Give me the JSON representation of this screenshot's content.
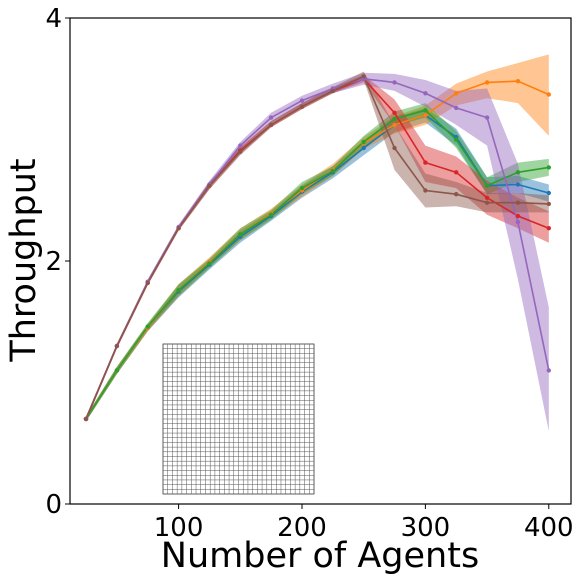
{
  "chart_data": {
    "type": "line",
    "title": "",
    "xlabel": "Number of Agents",
    "ylabel": "Throughput",
    "xlim": [
      12,
      418
    ],
    "ylim": [
      0,
      4
    ],
    "xticks": [
      100,
      200,
      300,
      400
    ],
    "yticks": [
      0,
      2,
      4
    ],
    "grid": false,
    "inset": {
      "kind": "grid-map",
      "cells_x": 32,
      "cells_y": 32
    },
    "x": [
      25,
      50,
      75,
      100,
      125,
      150,
      175,
      200,
      225,
      250,
      275,
      300,
      325,
      350,
      375,
      400
    ],
    "series": [
      {
        "color": "#1f77b4",
        "values": [
          0.7,
          1.1,
          1.45,
          1.75,
          1.97,
          2.2,
          2.37,
          2.57,
          2.73,
          2.93,
          3.12,
          3.2,
          3.02,
          2.62,
          2.63,
          2.56
        ],
        "lower": [
          0.68,
          1.07,
          1.42,
          1.7,
          1.93,
          2.15,
          2.33,
          2.52,
          2.68,
          2.87,
          3.06,
          3.14,
          2.95,
          2.55,
          2.56,
          2.49
        ],
        "upper": [
          0.72,
          1.13,
          1.48,
          1.8,
          2.01,
          2.25,
          2.41,
          2.62,
          2.78,
          2.99,
          3.18,
          3.26,
          3.09,
          2.69,
          2.7,
          2.63
        ]
      },
      {
        "color": "#ff7f0e",
        "values": [
          0.7,
          1.1,
          1.45,
          1.76,
          1.99,
          2.22,
          2.39,
          2.58,
          2.75,
          2.97,
          3.12,
          3.2,
          3.38,
          3.47,
          3.48,
          3.37
        ],
        "lower": [
          0.68,
          1.07,
          1.42,
          1.71,
          1.95,
          2.17,
          2.35,
          2.53,
          2.7,
          2.92,
          3.05,
          3.12,
          3.28,
          3.34,
          3.3,
          3.03
        ],
        "upper": [
          0.72,
          1.13,
          1.48,
          1.81,
          2.03,
          2.27,
          2.43,
          2.63,
          2.8,
          3.02,
          3.19,
          3.28,
          3.46,
          3.56,
          3.63,
          3.7
        ]
      },
      {
        "color": "#2ca02c",
        "values": [
          0.7,
          1.1,
          1.46,
          1.76,
          1.98,
          2.22,
          2.38,
          2.6,
          2.74,
          2.98,
          3.17,
          3.24,
          3.0,
          2.62,
          2.73,
          2.77
        ],
        "lower": [
          0.68,
          1.07,
          1.43,
          1.71,
          1.94,
          2.17,
          2.34,
          2.55,
          2.7,
          2.93,
          3.11,
          3.18,
          2.93,
          2.55,
          2.65,
          2.7
        ],
        "upper": [
          0.72,
          1.13,
          1.49,
          1.81,
          2.02,
          2.27,
          2.42,
          2.65,
          2.78,
          3.03,
          3.23,
          3.3,
          3.07,
          2.69,
          2.81,
          2.84
        ]
      },
      {
        "color": "#d62728",
        "values": [
          0.7,
          1.3,
          1.82,
          2.27,
          2.62,
          2.91,
          3.12,
          3.27,
          3.4,
          3.5,
          3.22,
          2.81,
          2.73,
          2.52,
          2.37,
          2.27
        ],
        "lower": [
          0.68,
          1.28,
          1.8,
          2.25,
          2.59,
          2.88,
          3.1,
          3.25,
          3.38,
          3.47,
          3.12,
          2.65,
          2.6,
          2.38,
          2.27,
          2.15
        ],
        "upper": [
          0.72,
          1.32,
          1.84,
          2.29,
          2.65,
          2.94,
          3.15,
          3.3,
          3.43,
          3.53,
          3.33,
          2.95,
          2.86,
          2.66,
          2.52,
          2.41
        ]
      },
      {
        "color": "#9467bd",
        "values": [
          0.7,
          1.3,
          1.83,
          2.28,
          2.63,
          2.95,
          3.18,
          3.32,
          3.42,
          3.5,
          3.47,
          3.38,
          3.26,
          3.18,
          2.32,
          1.1
        ],
        "lower": [
          0.68,
          1.28,
          1.81,
          2.26,
          2.6,
          2.92,
          3.14,
          3.28,
          3.38,
          3.45,
          3.4,
          3.27,
          3.12,
          2.95,
          1.85,
          0.6
        ],
        "upper": [
          0.72,
          1.32,
          1.85,
          2.3,
          2.66,
          2.98,
          3.22,
          3.36,
          3.46,
          3.55,
          3.54,
          3.49,
          3.4,
          3.42,
          2.8,
          1.62
        ]
      },
      {
        "color": "#8c564b",
        "values": [
          0.7,
          1.3,
          1.82,
          2.27,
          2.62,
          2.9,
          3.12,
          3.27,
          3.4,
          3.52,
          2.93,
          2.58,
          2.55,
          2.48,
          2.48,
          2.47
        ],
        "lower": [
          0.68,
          1.28,
          1.8,
          2.25,
          2.59,
          2.87,
          3.1,
          3.25,
          3.38,
          3.49,
          2.75,
          2.44,
          2.45,
          2.4,
          2.4,
          2.4
        ],
        "upper": [
          0.72,
          1.32,
          1.84,
          2.29,
          2.65,
          2.93,
          3.15,
          3.3,
          3.43,
          3.56,
          3.12,
          2.72,
          2.65,
          2.56,
          2.56,
          2.54
        ]
      }
    ]
  }
}
